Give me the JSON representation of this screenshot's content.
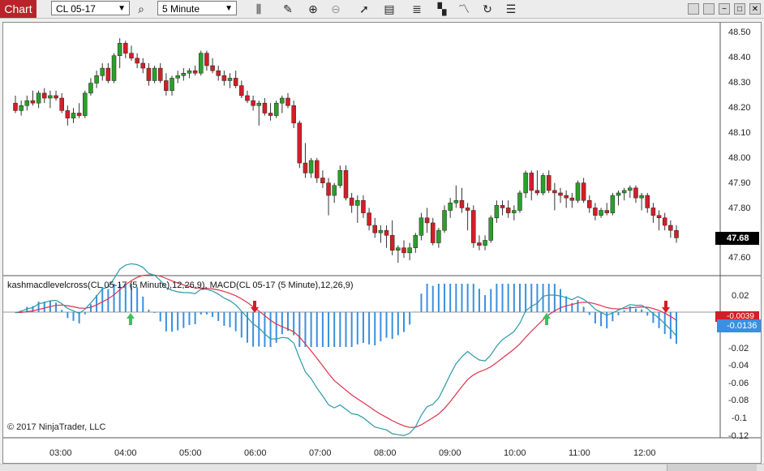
{
  "window": {
    "tab_label": "Chart"
  },
  "toolbar": {
    "instrument": "CL 05-17",
    "interval": "5 Minute",
    "icons": [
      "search-icon",
      "bars-icon",
      "pencil-icon",
      "zoom-in-icon",
      "zoom-out-icon",
      "pointer-icon",
      "data-box-icon",
      "bar-style-icon",
      "chart-trader-icon",
      "strategies-icon",
      "refresh-icon",
      "properties-icon"
    ]
  },
  "window_buttons": [
    "minimize",
    "restore",
    "maximize",
    "close"
  ],
  "price_axis": {
    "ticks": [
      "48.50",
      "48.40",
      "48.30",
      "48.20",
      "48.10",
      "48.00",
      "47.90",
      "47.80",
      "47.70",
      "47.60"
    ],
    "last_price": "47.68"
  },
  "indicator": {
    "label": "kashmacdlevelcross(CL 05-17 (5 Minute),12,26,9), MACD(CL 05-17 (5 Minute),12,26,9)",
    "ticks": [
      "0.02",
      "-0.02",
      "-0.04",
      "-0.06",
      "-0.08",
      "-0.1",
      "-0.12"
    ],
    "marker_red": "-0.0039",
    "marker_blue": "-0.0136"
  },
  "time_axis": {
    "ticks": [
      "03:00",
      "04:00",
      "05:00",
      "06:00",
      "07:00",
      "08:00",
      "09:00",
      "10:00",
      "11:00",
      "12:00"
    ]
  },
  "copyright": "© 2017 NinjaTrader, LLC",
  "colors": {
    "up": "#2aa02a",
    "down": "#d21f26",
    "macd": "#2a9aa8",
    "signal": "#e0304a",
    "hist": "#3a8fe0",
    "arrow_up": "#3fbf5f",
    "arrow_down": "#d21f26"
  },
  "chart_data": {
    "type": "candlestick",
    "x_axis": "time (5 minute bars)",
    "y_axis": "price",
    "ylim": [
      47.56,
      48.53
    ],
    "candles": [
      [
        48.22,
        48.25,
        48.18,
        48.19
      ],
      [
        48.19,
        48.23,
        48.17,
        48.21
      ],
      [
        48.21,
        48.25,
        48.19,
        48.23
      ],
      [
        48.23,
        48.27,
        48.21,
        48.22
      ],
      [
        48.22,
        48.27,
        48.2,
        48.26
      ],
      [
        48.26,
        48.28,
        48.22,
        48.24
      ],
      [
        48.24,
        48.27,
        48.2,
        48.25
      ],
      [
        48.25,
        48.27,
        48.23,
        48.24
      ],
      [
        48.24,
        48.26,
        48.18,
        48.19
      ],
      [
        48.19,
        48.21,
        48.13,
        48.16
      ],
      [
        48.16,
        48.2,
        48.14,
        48.18
      ],
      [
        48.18,
        48.22,
        48.16,
        48.17
      ],
      [
        48.17,
        48.27,
        48.16,
        48.26
      ],
      [
        48.26,
        48.32,
        48.25,
        48.3
      ],
      [
        48.3,
        48.35,
        48.28,
        48.33
      ],
      [
        48.33,
        48.38,
        48.31,
        48.36
      ],
      [
        48.36,
        48.38,
        48.3,
        48.31
      ],
      [
        48.31,
        48.42,
        48.3,
        48.41
      ],
      [
        48.41,
        48.48,
        48.36,
        48.46
      ],
      [
        48.46,
        48.47,
        48.4,
        48.42
      ],
      [
        48.42,
        48.45,
        48.39,
        48.4
      ],
      [
        48.4,
        48.42,
        48.36,
        48.38
      ],
      [
        48.38,
        48.4,
        48.34,
        48.36
      ],
      [
        48.36,
        48.38,
        48.29,
        48.31
      ],
      [
        48.31,
        48.37,
        48.3,
        48.36
      ],
      [
        48.36,
        48.38,
        48.3,
        48.31
      ],
      [
        48.31,
        48.34,
        48.25,
        48.27
      ],
      [
        48.27,
        48.33,
        48.25,
        48.32
      ],
      [
        48.32,
        48.35,
        48.3,
        48.33
      ],
      [
        48.33,
        48.36,
        48.31,
        48.34
      ],
      [
        48.34,
        48.36,
        48.32,
        48.35
      ],
      [
        48.35,
        48.37,
        48.33,
        48.34
      ],
      [
        48.34,
        48.43,
        48.33,
        48.42
      ],
      [
        48.42,
        48.43,
        48.35,
        48.37
      ],
      [
        48.37,
        48.4,
        48.34,
        48.35
      ],
      [
        48.35,
        48.37,
        48.31,
        48.33
      ],
      [
        48.33,
        48.35,
        48.29,
        48.31
      ],
      [
        48.31,
        48.34,
        48.28,
        48.32
      ],
      [
        48.32,
        48.35,
        48.28,
        48.29
      ],
      [
        48.29,
        48.31,
        48.24,
        48.25
      ],
      [
        48.25,
        48.27,
        48.22,
        48.23
      ],
      [
        48.23,
        48.25,
        48.19,
        48.21
      ],
      [
        48.21,
        48.23,
        48.13,
        48.22
      ],
      [
        48.22,
        48.24,
        48.17,
        48.18
      ],
      [
        48.18,
        48.22,
        48.15,
        48.17
      ],
      [
        48.17,
        48.23,
        48.16,
        48.22
      ],
      [
        48.22,
        48.25,
        48.18,
        48.24
      ],
      [
        48.24,
        48.26,
        48.2,
        48.21
      ],
      [
        48.21,
        48.23,
        48.12,
        48.14
      ],
      [
        48.14,
        48.15,
        47.96,
        47.98
      ],
      [
        47.98,
        48.06,
        47.92,
        47.94
      ],
      [
        47.94,
        48.0,
        47.92,
        47.99
      ],
      [
        47.99,
        48.0,
        47.9,
        47.92
      ],
      [
        47.92,
        47.95,
        47.88,
        47.9
      ],
      [
        47.9,
        47.92,
        47.77,
        47.85
      ],
      [
        47.85,
        47.9,
        47.82,
        47.89
      ],
      [
        47.89,
        47.97,
        47.88,
        47.95
      ],
      [
        47.95,
        47.97,
        47.83,
        47.84
      ],
      [
        47.84,
        47.86,
        47.78,
        47.81
      ],
      [
        47.81,
        47.85,
        47.74,
        47.83
      ],
      [
        47.83,
        47.85,
        47.76,
        47.78
      ],
      [
        47.78,
        47.8,
        47.71,
        47.73
      ],
      [
        47.73,
        47.76,
        47.68,
        47.7
      ],
      [
        47.7,
        47.73,
        47.66,
        47.71
      ],
      [
        47.71,
        47.73,
        47.64,
        47.69
      ],
      [
        47.69,
        47.75,
        47.61,
        47.63
      ],
      [
        47.63,
        47.65,
        47.58,
        47.64
      ],
      [
        47.64,
        47.67,
        47.6,
        47.62
      ],
      [
        47.62,
        47.66,
        47.59,
        47.64
      ],
      [
        47.64,
        47.7,
        47.62,
        47.69
      ],
      [
        47.69,
        47.78,
        47.67,
        47.76
      ],
      [
        47.76,
        47.8,
        47.7,
        47.74
      ],
      [
        47.74,
        47.76,
        47.65,
        47.66
      ],
      [
        47.66,
        47.72,
        47.64,
        47.71
      ],
      [
        47.71,
        47.81,
        47.7,
        47.79
      ],
      [
        47.79,
        47.84,
        47.76,
        47.82
      ],
      [
        47.82,
        47.89,
        47.8,
        47.83
      ],
      [
        47.83,
        47.88,
        47.78,
        47.8
      ],
      [
        47.8,
        47.82,
        47.71,
        47.79
      ],
      [
        47.79,
        47.81,
        47.64,
        47.66
      ],
      [
        47.66,
        47.69,
        47.63,
        47.65
      ],
      [
        47.65,
        47.69,
        47.63,
        47.67
      ],
      [
        47.67,
        47.77,
        47.66,
        47.76
      ],
      [
        47.76,
        47.83,
        47.74,
        47.81
      ],
      [
        47.81,
        47.83,
        47.77,
        47.8
      ],
      [
        47.8,
        47.83,
        47.76,
        47.78
      ],
      [
        47.78,
        47.81,
        47.75,
        47.79
      ],
      [
        47.79,
        47.87,
        47.78,
        47.86
      ],
      [
        47.86,
        47.95,
        47.84,
        47.94
      ],
      [
        47.94,
        47.95,
        47.83,
        47.87
      ],
      [
        47.87,
        47.95,
        47.85,
        47.86
      ],
      [
        47.86,
        47.94,
        47.85,
        47.93
      ],
      [
        47.93,
        47.95,
        47.86,
        47.87
      ],
      [
        47.87,
        47.9,
        47.79,
        47.86
      ],
      [
        47.86,
        47.88,
        47.82,
        47.85
      ],
      [
        47.85,
        47.87,
        47.8,
        47.84
      ],
      [
        47.84,
        47.86,
        47.8,
        47.83
      ],
      [
        47.83,
        47.91,
        47.82,
        47.9
      ],
      [
        47.9,
        47.92,
        47.82,
        47.83
      ],
      [
        47.83,
        47.85,
        47.78,
        47.8
      ],
      [
        47.8,
        47.82,
        47.75,
        47.77
      ],
      [
        47.77,
        47.8,
        47.76,
        47.79
      ],
      [
        47.79,
        47.82,
        47.77,
        47.78
      ],
      [
        47.78,
        47.86,
        47.77,
        47.85
      ],
      [
        47.85,
        47.87,
        47.81,
        47.86
      ],
      [
        47.86,
        47.88,
        47.83,
        47.87
      ],
      [
        47.87,
        47.89,
        47.84,
        47.88
      ],
      [
        47.88,
        47.89,
        47.82,
        47.84
      ],
      [
        47.84,
        47.86,
        47.79,
        47.85
      ],
      [
        47.85,
        47.86,
        47.78,
        47.8
      ],
      [
        47.8,
        47.82,
        47.74,
        47.77
      ],
      [
        47.77,
        47.79,
        47.71,
        47.76
      ],
      [
        47.76,
        47.78,
        47.71,
        47.73
      ],
      [
        47.73,
        47.75,
        47.68,
        47.71
      ],
      [
        47.71,
        47.73,
        47.66,
        47.68
      ]
    ],
    "macd_ylim": [
      -0.135,
      0.03
    ]
  }
}
